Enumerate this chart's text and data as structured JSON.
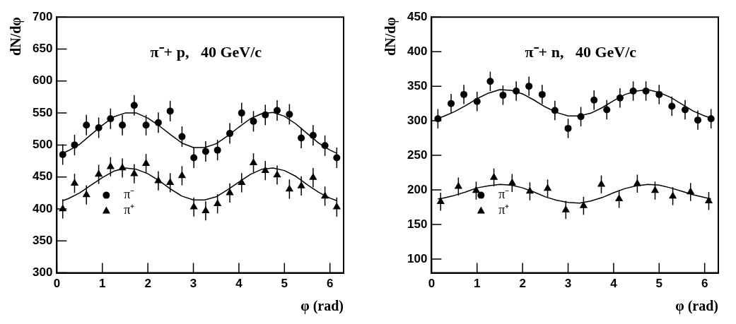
{
  "chart_data": [
    {
      "type": "scatter",
      "title": "π⁻+ p,   40 GeV/c",
      "xlabel": "φ (rad)",
      "ylabel": "dN/dφ",
      "xlim": [
        0,
        6.3
      ],
      "xticks": [
        0,
        1,
        2,
        3,
        4,
        5,
        6
      ],
      "ylim": [
        300,
        700
      ],
      "yticks": [
        300,
        350,
        400,
        450,
        500,
        550,
        600,
        650,
        700
      ],
      "grid": false,
      "legend": "bottom left",
      "series": [
        {
          "name": "π⁻",
          "marker": "circle",
          "color": "#000000",
          "x": [
            0.13,
            0.39,
            0.65,
            0.92,
            1.18,
            1.44,
            1.7,
            1.96,
            2.23,
            2.49,
            2.75,
            3.01,
            3.27,
            3.53,
            3.8,
            4.06,
            4.32,
            4.58,
            4.84,
            5.11,
            5.37,
            5.63,
            5.89,
            6.15
          ],
          "values": [
            485,
            500,
            531,
            527,
            541,
            531,
            562,
            531,
            535,
            553,
            513,
            480,
            490,
            492,
            518,
            550,
            537,
            547,
            554,
            548,
            511,
            515,
            499,
            480
          ],
          "errors": [
            16,
            16,
            16,
            16,
            16,
            16,
            16,
            16,
            16,
            16,
            16,
            16,
            16,
            16,
            16,
            16,
            16,
            16,
            16,
            16,
            16,
            16,
            16,
            16
          ]
        },
        {
          "name": "π⁺",
          "marker": "triangle",
          "color": "#000000",
          "x": [
            0.13,
            0.39,
            0.65,
            0.92,
            1.18,
            1.44,
            1.7,
            1.96,
            2.23,
            2.49,
            2.75,
            3.01,
            3.27,
            3.53,
            3.8,
            4.06,
            4.32,
            4.58,
            4.84,
            5.11,
            5.37,
            5.63,
            5.89,
            6.15
          ],
          "values": [
            400,
            440,
            422,
            454,
            466,
            464,
            455,
            471,
            444,
            441,
            452,
            403,
            397,
            408,
            425,
            441,
            472,
            460,
            453,
            431,
            436,
            449,
            420,
            403
          ],
          "errors": [
            15,
            15,
            15,
            15,
            15,
            15,
            15,
            15,
            15,
            15,
            15,
            15,
            15,
            15,
            15,
            15,
            15,
            15,
            15,
            15,
            15,
            15,
            15,
            15
          ]
        },
        {
          "type": "line",
          "marker": "none",
          "color": "#000000",
          "x": [
            0.13,
            0.25,
            0.5,
            0.75,
            1,
            1.25,
            1.5,
            1.75,
            2,
            2.25,
            2.5,
            2.75,
            3,
            3.25,
            3.5,
            3.75,
            4,
            4.25,
            4.5,
            4.75,
            5,
            5.25,
            5.5,
            5.75,
            6,
            6.15
          ],
          "values": [
            487,
            491,
            501,
            516,
            531,
            544,
            550,
            550,
            542,
            530,
            516,
            503,
            496,
            496,
            502,
            514,
            528,
            541,
            549,
            551,
            545,
            533,
            518,
            503,
            492,
            487
          ]
        },
        {
          "type": "line",
          "marker": "none",
          "color": "#000000",
          "x": [
            0.13,
            0.25,
            0.5,
            0.75,
            1,
            1.25,
            1.5,
            1.75,
            2,
            2.25,
            2.5,
            2.75,
            3,
            3.25,
            3.5,
            3.75,
            4,
            4.25,
            4.5,
            4.75,
            5,
            5.25,
            5.5,
            5.75,
            6,
            6.15
          ],
          "values": [
            413,
            416,
            425,
            437,
            449,
            459,
            464,
            462,
            455,
            444,
            431,
            420,
            414,
            414,
            419,
            430,
            442,
            454,
            462,
            464,
            460,
            451,
            438,
            426,
            417,
            413
          ]
        }
      ]
    },
    {
      "type": "scatter",
      "title": "π⁻+ n,   40 GeV/c",
      "xlabel": "φ (rad)",
      "ylabel": "dN/dφ",
      "xlim": [
        0,
        6.3
      ],
      "xticks": [
        0,
        1,
        2,
        3,
        4,
        5,
        6
      ],
      "ylim": [
        80,
        450
      ],
      "yticks": [
        100,
        150,
        200,
        250,
        300,
        350,
        400,
        450
      ],
      "grid": false,
      "legend": "bottom left",
      "series": [
        {
          "name": "π⁻",
          "marker": "circle",
          "color": "#000000",
          "x": [
            0.14,
            0.43,
            0.71,
            1.0,
            1.29,
            1.57,
            1.86,
            2.14,
            2.43,
            2.71,
            3.0,
            3.28,
            3.57,
            3.85,
            4.14,
            4.43,
            4.71,
            5.0,
            5.28,
            5.57,
            5.85,
            6.14
          ],
          "values": [
            303,
            325,
            338,
            328,
            357,
            337,
            343,
            350,
            338,
            315,
            289,
            306,
            330,
            316,
            333,
            343,
            343,
            338,
            321,
            316,
            301,
            303
          ],
          "errors": [
            14,
            14,
            14,
            14,
            14,
            14,
            14,
            14,
            14,
            14,
            14,
            14,
            14,
            14,
            14,
            14,
            14,
            14,
            14,
            14,
            14,
            14
          ]
        },
        {
          "name": "π⁺",
          "marker": "triangle",
          "color": "#000000",
          "x": [
            0.2,
            0.59,
            0.98,
            1.37,
            1.77,
            2.16,
            2.55,
            2.95,
            3.34,
            3.73,
            4.12,
            4.52,
            4.91,
            5.3,
            5.69,
            6.09
          ],
          "values": [
            183,
            205,
            199,
            218,
            210,
            198,
            202,
            171,
            177,
            208,
            187,
            209,
            199,
            191,
            197,
            184
          ],
          "errors": [
            13,
            13,
            13,
            13,
            13,
            13,
            13,
            13,
            13,
            13,
            13,
            13,
            13,
            13,
            13,
            13
          ]
        },
        {
          "type": "line",
          "marker": "none",
          "color": "#000000",
          "x": [
            0.14,
            0.25,
            0.5,
            0.75,
            1,
            1.25,
            1.5,
            1.75,
            2,
            2.25,
            2.5,
            2.75,
            3,
            3.25,
            3.5,
            3.75,
            4,
            4.25,
            4.5,
            4.75,
            5,
            5.25,
            5.5,
            5.75,
            6,
            6.14
          ],
          "values": [
            304,
            306,
            313,
            322,
            332,
            340,
            345,
            344,
            339,
            330,
            320,
            312,
            307,
            307,
            311,
            319,
            329,
            338,
            343,
            345,
            341,
            334,
            324,
            314,
            307,
            304
          ]
        },
        {
          "type": "line",
          "marker": "none",
          "color": "#000000",
          "x": [
            0.14,
            0.25,
            0.5,
            0.75,
            1,
            1.25,
            1.5,
            1.75,
            2,
            2.25,
            2.5,
            2.75,
            3,
            3.25,
            3.5,
            3.75,
            4,
            4.25,
            4.5,
            4.75,
            5,
            5.25,
            5.5,
            5.75,
            6,
            6.14
          ],
          "values": [
            187,
            188,
            192,
            197,
            203,
            206,
            208,
            207,
            203,
            197,
            190,
            185,
            182,
            181,
            184,
            189,
            196,
            202,
            206,
            208,
            207,
            203,
            198,
            193,
            189,
            187
          ]
        }
      ]
    }
  ]
}
